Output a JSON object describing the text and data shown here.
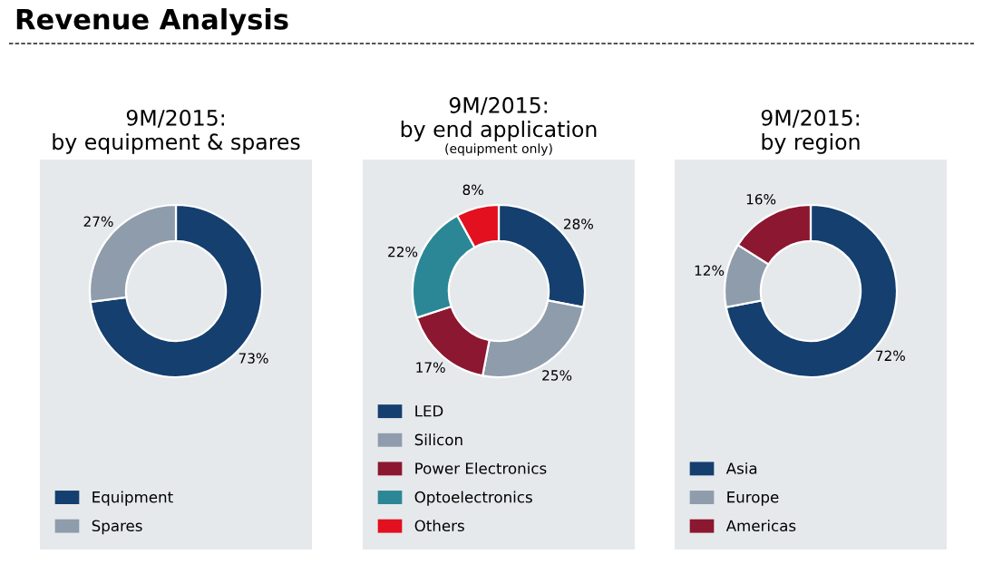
{
  "chart_data": [
    {
      "type": "donut",
      "title": "9M/2015:\nby equipment & spares",
      "annotations": [
        "Revenue Analysis"
      ],
      "categories": [
        "Equipment",
        "Spares"
      ],
      "values": [
        73,
        27
      ],
      "colors": [
        "#143f6e",
        "#8e9cab"
      ],
      "value_labels": [
        "73%",
        "27%"
      ],
      "legend": "bottom left"
    },
    {
      "type": "donut",
      "title": "9M/2015:\nby end application",
      "subtitle": "(equipment only)",
      "categories": [
        "LED",
        "Silicon",
        "Power Electronics",
        "Optoelectronics",
        "Others"
      ],
      "values": [
        28,
        25,
        17,
        22,
        8
      ],
      "colors": [
        "#143f6e",
        "#8e9cab",
        "#8c1730",
        "#2b8796",
        "#e3101f"
      ],
      "value_labels": [
        "28%",
        "25%",
        "17%",
        "22%",
        "8%"
      ],
      "legend": "bottom left"
    },
    {
      "type": "donut",
      "title": "9M/2015:\nby region",
      "categories": [
        "Asia",
        "Europe",
        "Americas"
      ],
      "values": [
        72,
        12,
        16
      ],
      "colors": [
        "#143f6e",
        "#8e9cab",
        "#8c1730"
      ],
      "value_labels": [
        "72%",
        "12%",
        "16%"
      ],
      "legend": "bottom left"
    }
  ]
}
